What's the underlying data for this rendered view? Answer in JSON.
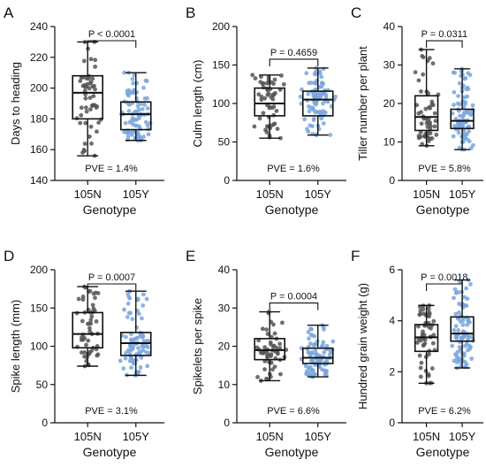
{
  "panels": [
    {
      "label": "A",
      "ylabel": "Days to heading",
      "xlabel": "Genotype",
      "pve": "PVE = 1.4%",
      "pvalue": "P < 0.0001"
    },
    {
      "label": "B",
      "ylabel": "Culm length (cm)",
      "xlabel": "Genotype",
      "pve": "PVE = 1.6%",
      "pvalue": "P = 0.4659"
    },
    {
      "label": "C",
      "ylabel": "Tiller number per plant",
      "xlabel": "Genotype",
      "pve": "PVE = 5.8%",
      "pvalue": "P = 0.0311"
    },
    {
      "label": "D",
      "ylabel": "Spike length (mm)",
      "xlabel": "Genotype",
      "pve": "PVE = 3.1%",
      "pvalue": "P = 0.0007"
    },
    {
      "label": "E",
      "ylabel": "Spikelets per spike",
      "xlabel": "Genotype",
      "pve": "PVE = 6.6%",
      "pvalue": "P = 0.0004"
    },
    {
      "label": "F",
      "ylabel": "Hundred grain weight (g)",
      "xlabel": "Genotype",
      "pve": "PVE = 6.2%",
      "pvalue": "P = 0.0018"
    }
  ],
  "colors": {
    "group1_points": "#555555",
    "group2_points": "#7aa6dc",
    "box": "#111111"
  },
  "chart_data": [
    {
      "type": "box",
      "categories": [
        "105N",
        "105Y"
      ],
      "ylim": [
        140,
        240
      ],
      "yticks": [
        140,
        160,
        180,
        200,
        220,
        240
      ],
      "series": [
        {
          "name": "105N",
          "min": 156,
          "q1": 180,
          "median": 197,
          "q3": 208,
          "max": 230,
          "n": 55
        },
        {
          "name": "105Y",
          "min": 166,
          "q1": 173,
          "median": 183,
          "q3": 191,
          "max": 210,
          "n": 90
        }
      ]
    },
    {
      "type": "box",
      "categories": [
        "105N",
        "105Y"
      ],
      "ylim": [
        0,
        200
      ],
      "yticks": [
        0,
        50,
        100,
        150,
        200
      ],
      "series": [
        {
          "name": "105N",
          "min": 55,
          "q1": 84,
          "median": 100,
          "q3": 120,
          "max": 137,
          "n": 55
        },
        {
          "name": "105Y",
          "min": 59,
          "q1": 84,
          "median": 105,
          "q3": 116,
          "max": 146,
          "n": 90
        }
      ]
    },
    {
      "type": "box",
      "categories": [
        "105N",
        "105Y"
      ],
      "ylim": [
        0,
        40
      ],
      "yticks": [
        0,
        10,
        20,
        30,
        40
      ],
      "series": [
        {
          "name": "105N",
          "min": 9,
          "q1": 13,
          "median": 16.5,
          "q3": 22,
          "max": 34,
          "n": 55
        },
        {
          "name": "105Y",
          "min": 8,
          "q1": 13.5,
          "median": 15.5,
          "q3": 18.5,
          "max": 29,
          "n": 90
        }
      ]
    },
    {
      "type": "box",
      "categories": [
        "105N",
        "105Y"
      ],
      "ylim": [
        0,
        200
      ],
      "yticks": [
        0,
        50,
        100,
        150,
        200
      ],
      "series": [
        {
          "name": "105N",
          "min": 74,
          "q1": 98,
          "median": 116,
          "q3": 144,
          "max": 178,
          "n": 55
        },
        {
          "name": "105Y",
          "min": 62,
          "q1": 88,
          "median": 104,
          "q3": 118,
          "max": 172,
          "n": 90
        }
      ]
    },
    {
      "type": "box",
      "categories": [
        "105N",
        "105Y"
      ],
      "ylim": [
        0,
        40
      ],
      "yticks": [
        0,
        10,
        20,
        30,
        40
      ],
      "series": [
        {
          "name": "105N",
          "min": 11,
          "q1": 16.5,
          "median": 19,
          "q3": 22,
          "max": 29,
          "n": 55
        },
        {
          "name": "105Y",
          "min": 12,
          "q1": 15.5,
          "median": 17,
          "q3": 19.5,
          "max": 25.5,
          "n": 90
        }
      ]
    },
    {
      "type": "box",
      "categories": [
        "105N",
        "105Y"
      ],
      "ylim": [
        0,
        6
      ],
      "yticks": [
        0,
        2,
        4,
        6
      ],
      "series": [
        {
          "name": "105N",
          "min": 1.55,
          "q1": 2.8,
          "median": 3.35,
          "q3": 3.85,
          "max": 4.6,
          "n": 55
        },
        {
          "name": "105Y",
          "min": 2.15,
          "q1": 3.2,
          "median": 3.5,
          "q3": 4.15,
          "max": 5.6,
          "n": 90
        }
      ]
    }
  ]
}
